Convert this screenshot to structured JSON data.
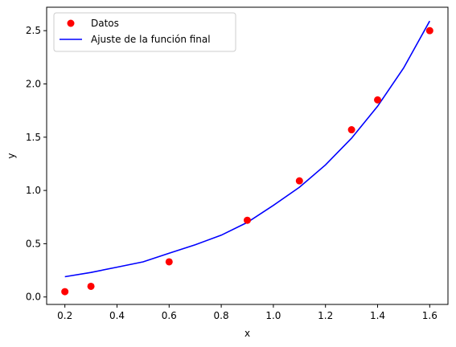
{
  "chart_data": {
    "type": "scatter",
    "xlabel": "x",
    "ylabel": "y",
    "xlim": [
      0.13,
      1.67
    ],
    "ylim": [
      -0.07,
      2.72
    ],
    "xticks": [
      0.2,
      0.4,
      0.6,
      0.8,
      1.0,
      1.2,
      1.4,
      1.6
    ],
    "xtick_labels": [
      "0.2",
      "0.4",
      "0.6",
      "0.8",
      "1.0",
      "1.2",
      "1.4",
      "1.6"
    ],
    "yticks": [
      0.0,
      0.5,
      1.0,
      1.5,
      2.0,
      2.5
    ],
    "ytick_labels": [
      "0.0",
      "0.5",
      "1.0",
      "1.5",
      "2.0",
      "2.5"
    ],
    "grid": false,
    "legend_position": "top-left",
    "series": [
      {
        "name": "Datos",
        "kind": "scatter",
        "color": "#ff0000",
        "x": [
          0.2,
          0.3,
          0.6,
          0.9,
          1.1,
          1.3,
          1.4,
          1.6
        ],
        "y": [
          0.05,
          0.1,
          0.33,
          0.72,
          1.09,
          1.57,
          1.85,
          2.5
        ]
      },
      {
        "name": "Ajuste de la función final",
        "kind": "line",
        "color": "#0000ff",
        "x": [
          0.2,
          0.3,
          0.4,
          0.5,
          0.6,
          0.7,
          0.8,
          0.9,
          1.0,
          1.1,
          1.2,
          1.3,
          1.4,
          1.5,
          1.6
        ],
        "y": [
          0.19,
          0.23,
          0.28,
          0.33,
          0.41,
          0.49,
          0.58,
          0.7,
          0.86,
          1.03,
          1.24,
          1.49,
          1.79,
          2.15,
          2.59
        ]
      }
    ]
  }
}
